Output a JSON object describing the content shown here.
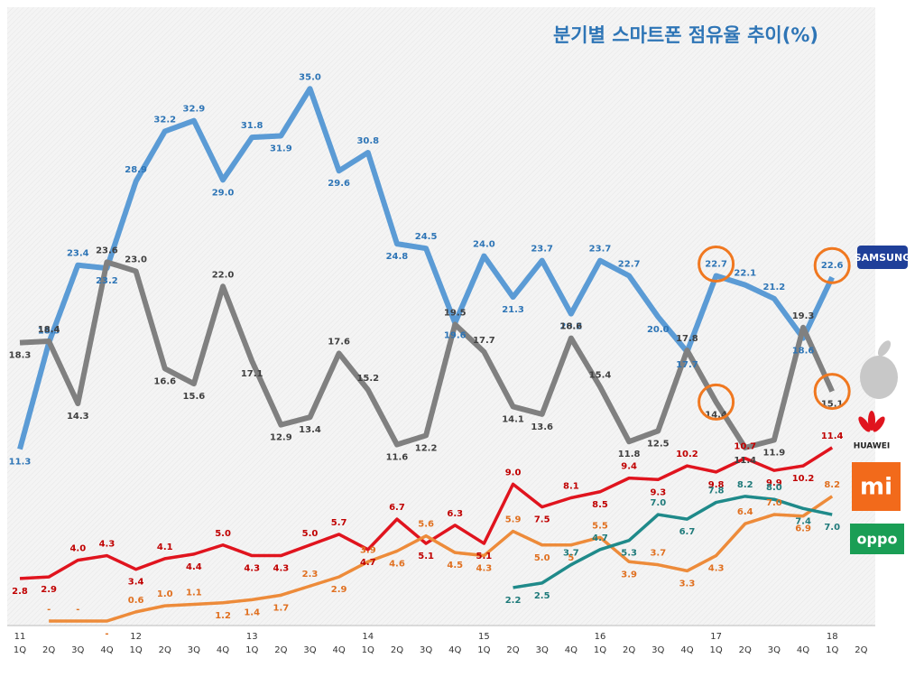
{
  "chart_data": {
    "type": "line",
    "title": "분기별 스마트폰 점유율 추이(%)",
    "categories": [
      "1Q",
      "2Q",
      "3Q",
      "4Q",
      "1Q",
      "2Q",
      "3Q",
      "4Q",
      "1Q",
      "2Q",
      "3Q",
      "4Q",
      "1Q",
      "2Q",
      "3Q",
      "4Q",
      "1Q",
      "2Q",
      "3Q",
      "4Q",
      "1Q",
      "2Q",
      "3Q",
      "4Q",
      "1Q",
      "2Q",
      "3Q",
      "4Q",
      "1Q",
      "2Q"
    ],
    "year_labels": [
      "11",
      null,
      null,
      null,
      "12",
      null,
      null,
      null,
      "13",
      null,
      null,
      null,
      "14",
      null,
      null,
      null,
      "15",
      null,
      null,
      null,
      "16",
      null,
      null,
      null,
      "17",
      null,
      null,
      null,
      "18",
      null
    ],
    "ylim": [
      0,
      40
    ],
    "series": [
      {
        "name": "SAMSUNG",
        "color": "#5b9bd5",
        "label_color": "#2e75b6",
        "values": [
          11.3,
          18.3,
          23.4,
          23.2,
          28.9,
          32.2,
          32.9,
          29.0,
          31.8,
          31.9,
          35.0,
          29.6,
          30.8,
          24.8,
          24.5,
          19.6,
          24.0,
          21.3,
          23.7,
          20.2,
          23.7,
          22.7,
          20.0,
          17.7,
          22.7,
          22.1,
          21.2,
          18.6,
          22.6,
          null
        ],
        "value_labels": [
          "11.3",
          "18.3",
          "23.4",
          "23.2",
          "28.9",
          "32.2",
          "32.9",
          "29.0",
          "31.8",
          "31.9",
          "35.0",
          "29.6",
          "30.8",
          "24.8",
          "24.5",
          "19.6",
          "24.0",
          "21.3",
          "23.7",
          "20.2",
          "23.7",
          "22.7",
          "20.0",
          "17.7",
          "22.7",
          "22.1",
          "21.2",
          "18.6",
          "22.6",
          null
        ]
      },
      {
        "color": "#808080",
        "label_color": "#404040",
        "values": [
          18.3,
          18.4,
          14.3,
          23.6,
          23.0,
          16.6,
          15.6,
          22.0,
          17.1,
          12.9,
          13.4,
          17.6,
          15.2,
          11.6,
          12.2,
          19.5,
          17.7,
          14.1,
          13.6,
          18.6,
          15.4,
          11.8,
          12.5,
          17.8,
          14.4,
          11.4,
          11.9,
          19.3,
          15.1,
          null
        ],
        "value_labels": [
          "18.3",
          "18.4",
          "14.3",
          "23.6",
          "23.0",
          "16.6",
          "15.6",
          "22.0",
          "17.1",
          "12.9",
          "13.4",
          "17.6",
          "15.2",
          "11.6",
          "12.2",
          "19.5",
          "17.7",
          "14.1",
          "13.6",
          "18.6",
          "15.4",
          "11.8",
          "12.5",
          "17.8",
          "14.4",
          "11.4",
          "11.9",
          "19.3",
          "15.1",
          null
        ]
      },
      {
        "name": "HUAWEI",
        "color": "#e0141e",
        "label_color": "#c00000",
        "values": [
          2.8,
          2.9,
          4.0,
          4.3,
          3.4,
          4.1,
          4.4,
          5.0,
          4.3,
          4.3,
          5.0,
          5.7,
          4.7,
          6.7,
          5.1,
          6.3,
          5.1,
          9.0,
          7.5,
          8.1,
          8.5,
          9.4,
          9.3,
          10.2,
          9.8,
          10.7,
          9.9,
          10.2,
          11.4,
          null
        ],
        "value_labels": [
          "2.8",
          "2.9",
          "4.0",
          "4.3",
          "3.4",
          "4.1",
          "4.4",
          "5.0",
          "4.3",
          "4.3",
          "5.0",
          "5.7",
          "4.7",
          "6.7",
          "5.1",
          "6.3",
          "5.1",
          "9.0",
          "7.5",
          "8.1",
          "8.5",
          "9.4",
          "9.3",
          "10.2",
          "9.8",
          "10.7",
          "9.9",
          "10.2",
          "11.4",
          null
        ]
      },
      {
        "name": "mi",
        "color": "#ed8b3a",
        "label_color": "#e07020",
        "values": [
          null,
          0,
          0,
          0,
          0.6,
          1.0,
          1.1,
          1.2,
          1.4,
          1.7,
          2.3,
          2.9,
          3.9,
          4.6,
          5.6,
          4.5,
          4.3,
          5.9,
          5.0,
          5,
          5.5,
          3.9,
          3.7,
          3.3,
          4.3,
          6.4,
          7.0,
          6.9,
          8.2,
          null
        ],
        "value_labels": [
          null,
          "-",
          "-",
          "-",
          "0.6",
          "1.0",
          "1.1",
          "1.2",
          "1.4",
          "1.7",
          "2.3",
          "2.9",
          "3.9",
          "4.6",
          "5.6",
          "4.5",
          "4.3",
          "5.9",
          "5.0",
          "5",
          "5.5",
          "3.9",
          "3.7",
          "3.3",
          "4.3",
          "6.4",
          "7.0",
          "6.9",
          "8.2",
          null
        ]
      },
      {
        "name": "oppo",
        "color": "#1f8a8a",
        "label_color": "#1f7a7a",
        "values": [
          null,
          null,
          null,
          null,
          null,
          null,
          null,
          null,
          null,
          null,
          null,
          null,
          null,
          null,
          null,
          null,
          null,
          2.2,
          2.5,
          3.7,
          4.7,
          5.3,
          7.0,
          6.7,
          7.8,
          8.2,
          8.0,
          7.4,
          7.0,
          null
        ],
        "value_labels": [
          null,
          null,
          null,
          null,
          null,
          null,
          null,
          null,
          null,
          null,
          null,
          null,
          null,
          null,
          null,
          null,
          null,
          "2.2",
          "2.5",
          "3.7",
          "4.7",
          "5.3",
          "7.0",
          "6.7",
          "7.8",
          "8.2",
          "8.0",
          "7.4",
          "7.0",
          null
        ]
      }
    ]
  }
}
